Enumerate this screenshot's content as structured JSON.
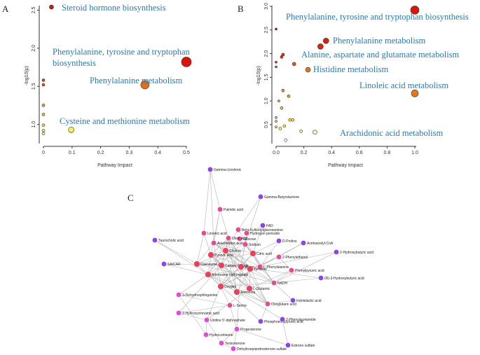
{
  "chart_data": [
    {
      "panel": "A",
      "type": "scatter",
      "xlabel": "Pathway Impact",
      "ylabel": "-log10(p)",
      "xlim": [
        0,
        0.5
      ],
      "ylim": [
        0.85,
        2.55
      ],
      "xticks": [
        "0",
        "0.1",
        "0.2",
        "0.3",
        "0.4",
        "0.5"
      ],
      "yticks": [
        "1.0",
        "1.5",
        "2.0",
        "2.5"
      ],
      "points": [
        {
          "x": 0.028,
          "y": 2.54,
          "size": 3,
          "color": "#d0170c"
        },
        {
          "x": 0.5,
          "y": 1.82,
          "size": 7,
          "color": "#d9150b"
        },
        {
          "x": 0.355,
          "y": 1.52,
          "size": 6,
          "color": "#e56d12"
        },
        {
          "x": 0.0,
          "y": 1.58,
          "size": 2,
          "color": "#d24a16"
        },
        {
          "x": 0.0,
          "y": 1.52,
          "size": 2,
          "color": "#d65a17"
        },
        {
          "x": 0.0,
          "y": 1.25,
          "size": 2,
          "color": "#e8a13a"
        },
        {
          "x": 0.0,
          "y": 1.13,
          "size": 2,
          "color": "#edb640"
        },
        {
          "x": 0.0,
          "y": 0.99,
          "size": 2,
          "color": "#f2d64b"
        },
        {
          "x": 0.0,
          "y": 0.92,
          "size": 2,
          "color": "#f5e25c"
        },
        {
          "x": 0.0,
          "y": 0.88,
          "size": 2,
          "color": "#f7ea78"
        },
        {
          "x": 0.097,
          "y": 0.93,
          "size": 4,
          "color": "#f8f05a"
        }
      ],
      "annotations": [
        {
          "text": "Steroid hormone biosynthesis"
        },
        {
          "text": "Phenylalanine, tyrosine and tryptophan"
        },
        {
          "text": "biosynthesis"
        },
        {
          "text": "Phenylalanine metabolism"
        },
        {
          "text": "Cysteine and methionine metabolism"
        }
      ]
    },
    {
      "panel": "B",
      "type": "scatter",
      "xlabel": "Pathway Impact",
      "ylabel": "-log10(p)",
      "xlim": [
        0,
        1.0
      ],
      "ylim": [
        0.1,
        3.0
      ],
      "xticks": [
        "0.0",
        "0.2",
        "0.4",
        "0.6",
        "0.8",
        "1.0"
      ],
      "yticks": [
        "0.5",
        "1.0",
        "1.5",
        "2.0",
        "2.5",
        "3.0"
      ],
      "points": [
        {
          "x": 1.0,
          "y": 2.92,
          "size": 6,
          "color": "#d9150b"
        },
        {
          "x": 0.36,
          "y": 2.27,
          "size": 4,
          "color": "#d7200d"
        },
        {
          "x": 0.32,
          "y": 2.15,
          "size": 4,
          "color": "#d22a0f"
        },
        {
          "x": 0.0,
          "y": 2.52,
          "size": 1.5,
          "color": "#c8160c"
        },
        {
          "x": 0.05,
          "y": 1.98,
          "size": 2,
          "color": "#d3360f"
        },
        {
          "x": 0.04,
          "y": 1.93,
          "size": 2,
          "color": "#d3360f"
        },
        {
          "x": 0.0,
          "y": 1.82,
          "size": 1.5,
          "color": "#d13c12"
        },
        {
          "x": 0.13,
          "y": 1.78,
          "size": 2.5,
          "color": "#dd5a14"
        },
        {
          "x": 0.0,
          "y": 1.72,
          "size": 1.5,
          "color": "#d34a15"
        },
        {
          "x": 0.23,
          "y": 1.66,
          "size": 3.5,
          "color": "#e3741b"
        },
        {
          "x": 1.0,
          "y": 1.16,
          "size": 5,
          "color": "#e5761a"
        },
        {
          "x": 0.05,
          "y": 1.22,
          "size": 2,
          "color": "#e8902a"
        },
        {
          "x": 0.09,
          "y": 1.1,
          "size": 2,
          "color": "#eba035"
        },
        {
          "x": 0.02,
          "y": 1.0,
          "size": 1.5,
          "color": "#edae3c"
        },
        {
          "x": 0.04,
          "y": 0.85,
          "size": 2,
          "color": "#efbe42"
        },
        {
          "x": 0.0,
          "y": 0.65,
          "size": 1.5,
          "color": "#f1cd48"
        },
        {
          "x": 0.1,
          "y": 0.6,
          "size": 2,
          "color": "#f3d84f"
        },
        {
          "x": 0.12,
          "y": 0.6,
          "size": 2,
          "color": "#f4dc55"
        },
        {
          "x": 0.0,
          "y": 0.57,
          "size": 1.5,
          "color": "#f3d84f"
        },
        {
          "x": 0.0,
          "y": 0.45,
          "size": 1.5,
          "color": "#f6e466"
        },
        {
          "x": 0.03,
          "y": 0.42,
          "size": 2,
          "color": "#f7e86e"
        },
        {
          "x": 0.06,
          "y": 0.47,
          "size": 2,
          "color": "#f5e25c"
        },
        {
          "x": 0.18,
          "y": 0.36,
          "size": 2,
          "color": "#f9f09a"
        },
        {
          "x": 0.28,
          "y": 0.34,
          "size": 3,
          "color": "#fbf6c0"
        },
        {
          "x": 0.07,
          "y": 0.17,
          "size": 2,
          "color": "#ffffff"
        }
      ],
      "annotations": [
        {
          "text": "Phenylalanine, tyrosine and tryptophan biosynthesis"
        },
        {
          "text": "Phenylalanine metabolism"
        },
        {
          "text": "Alanine, aspartate and glutamate metabolism"
        },
        {
          "text": "Histidine metabolism"
        },
        {
          "text": "Linoleic acid metabolism"
        },
        {
          "text": "Arachidonic acid metabolism"
        }
      ]
    },
    {
      "panel": "C",
      "type": "network",
      "nodes": [
        {
          "label": "Gamma-Linolenic",
          "kind": "pathway"
        },
        {
          "label": "Gamma-Butyrolactone",
          "kind": "pathway"
        },
        {
          "label": "Palmitic acid",
          "kind": "metabolite"
        },
        {
          "label": "FAD",
          "kind": "pathway"
        },
        {
          "label": "Beta-N-Acetylglucosamine",
          "kind": "metabolite"
        },
        {
          "label": "Hydrogen peroxide",
          "kind": "metabolite"
        },
        {
          "label": "Linoleic acid",
          "kind": "metabolite"
        },
        {
          "label": "Glucose",
          "kind": "metabolite"
        },
        {
          "label": "Oleic acid",
          "kind": "metabolite"
        },
        {
          "label": "Taurocholic acid",
          "kind": "pathway"
        },
        {
          "label": "Arachidonic acid",
          "kind": "metabolite"
        },
        {
          "label": "Sodium",
          "kind": "metabolite"
        },
        {
          "label": "D-Proline",
          "kind": "pathway"
        },
        {
          "label": "Acetoacetyl-CoA",
          "kind": "pathway"
        },
        {
          "label": "2-Hydroxybutyric acid",
          "kind": "pathway"
        },
        {
          "label": "Choline",
          "kind": "metabolite"
        },
        {
          "label": "Pyruvic acid",
          "kind": "metabolite"
        },
        {
          "label": "Citric acid",
          "kind": "metabolite"
        },
        {
          "label": "2-Phenylethanol",
          "kind": "metabolite"
        },
        {
          "label": "SAICAR",
          "kind": "pathway"
        },
        {
          "label": "Coenzyme A",
          "kind": "metabolite"
        },
        {
          "label": "Carbon dioxide",
          "kind": "metabolite"
        },
        {
          "label": "Water",
          "kind": "metabolite"
        },
        {
          "label": "L-Phenylalanine",
          "kind": "metabolite"
        },
        {
          "label": "Tyrosine",
          "kind": "metabolite"
        },
        {
          "label": "Phenylpyruvic acid",
          "kind": "metabolite"
        },
        {
          "label": "Adenosine triphosphate",
          "kind": "metabolite"
        },
        {
          "label": "(R)-3-Hydroxybutyric acid",
          "kind": "pathway"
        },
        {
          "label": "Oxygen",
          "kind": "metabolite"
        },
        {
          "label": "NADH",
          "kind": "metabolite"
        },
        {
          "label": "3-Dehydrosphinganine",
          "kind": "metabolite"
        },
        {
          "label": "L-Glutamic",
          "kind": "metabolite"
        },
        {
          "label": "Ammonia",
          "kind": "metabolite"
        },
        {
          "label": "Indolelactic acid",
          "kind": "pathway"
        },
        {
          "label": "L-Serine",
          "kind": "metabolite"
        },
        {
          "label": "Oxoglutaric acid",
          "kind": "metabolite"
        },
        {
          "label": "2-Hydroxycinnamic acid",
          "kind": "metabolite"
        },
        {
          "label": "Uridine 5'-diphosphate",
          "kind": "metabolite"
        },
        {
          "label": "Phosphoenolpyruvic acid",
          "kind": "pathway"
        },
        {
          "label": "2-Phenylacetamide",
          "kind": "pathway"
        },
        {
          "label": "Progesterone",
          "kind": "metabolite"
        },
        {
          "label": "Hydrocortisone",
          "kind": "metabolite"
        },
        {
          "label": "Testosterone",
          "kind": "metabolite"
        },
        {
          "label": "Estrone sulfate",
          "kind": "pathway"
        },
        {
          "label": "Dehydroepiandrosterone sulfate",
          "kind": "metabolite"
        }
      ]
    }
  ],
  "panel_letters": [
    "A",
    "B",
    "C"
  ]
}
